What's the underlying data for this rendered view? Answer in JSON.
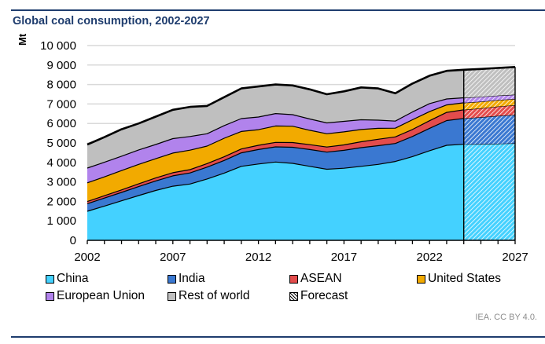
{
  "header": {
    "title": "Global coal consumption, 2002-2027"
  },
  "source_note": "IEA. CC BY 4.0.",
  "colors": {
    "title": "#1f3d6e",
    "rule": "#1f3d6e",
    "gridline": "#d9d9d9",
    "outline": "#000000",
    "source_text": "#8c8c8c"
  },
  "chart_data": {
    "type": "area",
    "stacked": true,
    "title": "Global coal consumption, 2002-2027",
    "xlabel": "",
    "ylabel": "Mt",
    "ylim": [
      0,
      10000
    ],
    "yticks": [
      0,
      1000,
      2000,
      3000,
      4000,
      5000,
      6000,
      7000,
      8000,
      9000,
      10000
    ],
    "ytick_labels": [
      "0",
      "1 000",
      "2 000",
      "3 000",
      "4 000",
      "5 000",
      "6 000",
      "7 000",
      "8 000",
      "9 000",
      "10 000"
    ],
    "xlim": [
      2002,
      2027
    ],
    "xtick_labels": [
      "2002",
      "2007",
      "2012",
      "2017",
      "2022",
      "2027"
    ],
    "xticks": [
      2002,
      2007,
      2012,
      2017,
      2022,
      2027
    ],
    "grid": true,
    "legend_position": "bottom",
    "forecast_start": 2024,
    "x": [
      2002,
      2003,
      2004,
      2005,
      2006,
      2007,
      2008,
      2009,
      2010,
      2011,
      2012,
      2013,
      2014,
      2015,
      2016,
      2017,
      2018,
      2019,
      2020,
      2021,
      2022,
      2023,
      2024,
      2025,
      2026,
      2027
    ],
    "series": [
      {
        "name": "China",
        "color": "#44d1ff",
        "values": [
          1490,
          1760,
          2030,
          2300,
          2560,
          2780,
          2890,
          3150,
          3450,
          3800,
          3920,
          4020,
          3950,
          3800,
          3650,
          3700,
          3800,
          3900,
          4050,
          4300,
          4600,
          4880,
          4930,
          4940,
          4960,
          4980
        ]
      },
      {
        "name": "India",
        "color": "#3a78d1",
        "values": [
          390,
          410,
          430,
          460,
          490,
          530,
          570,
          610,
          650,
          690,
          740,
          780,
          830,
          860,
          880,
          920,
          960,
          960,
          920,
          1030,
          1150,
          1270,
          1330,
          1380,
          1430,
          1460
        ]
      },
      {
        "name": "ASEAN",
        "color": "#e34c4c",
        "values": [
          110,
          120,
          130,
          140,
          150,
          160,
          170,
          180,
          190,
          200,
          220,
          230,
          240,
          250,
          260,
          280,
          300,
          330,
          340,
          360,
          390,
          420,
          440,
          460,
          480,
          500
        ]
      },
      {
        "name": "United States",
        "color": "#f2aa00",
        "values": [
          960,
          970,
          990,
          1000,
          990,
          1010,
          1000,
          900,
          950,
          900,
          800,
          840,
          840,
          740,
          680,
          670,
          630,
          560,
          450,
          500,
          470,
          380,
          360,
          340,
          330,
          320
        ]
      },
      {
        "name": "European Union",
        "color": "#b183ec",
        "values": [
          760,
          750,
          740,
          740,
          730,
          740,
          700,
          630,
          650,
          660,
          650,
          640,
          590,
          580,
          560,
          540,
          500,
          420,
          360,
          400,
          410,
          310,
          260,
          250,
          230,
          220
        ]
      },
      {
        "name": "Rest of world",
        "color": "#bfbfbf",
        "values": [
          1210,
          1290,
          1380,
          1360,
          1430,
          1480,
          1520,
          1430,
          1460,
          1550,
          1570,
          1490,
          1500,
          1520,
          1470,
          1540,
          1660,
          1630,
          1430,
          1460,
          1430,
          1440,
          1440,
          1430,
          1420,
          1420
        ]
      }
    ],
    "legend": [
      {
        "label": "China",
        "color": "#44d1ff",
        "pattern": false
      },
      {
        "label": "India",
        "color": "#3a78d1",
        "pattern": false
      },
      {
        "label": "ASEAN",
        "color": "#e34c4c",
        "pattern": false
      },
      {
        "label": "United States",
        "color": "#f2aa00",
        "pattern": false
      },
      {
        "label": "European Union",
        "color": "#b183ec",
        "pattern": false
      },
      {
        "label": "Rest of world",
        "color": "#bfbfbf",
        "pattern": false
      },
      {
        "label": "Forecast",
        "color": "#ffffff",
        "pattern": true
      }
    ]
  }
}
